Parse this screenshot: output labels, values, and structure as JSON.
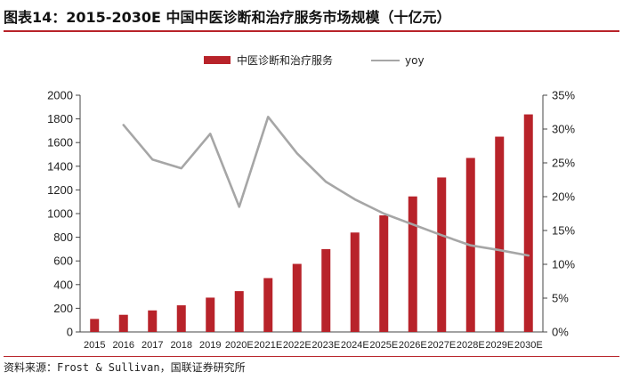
{
  "header": {
    "title": "图表14：2015-2030E 中国中医诊断和治疗服务市场规模（十亿元）"
  },
  "footer": {
    "source": "资料来源：Frost & Sullivan，国联证券研究所"
  },
  "colors": {
    "bar": "#b8232a",
    "line": "#a6a6a6",
    "accent": "#b8232a"
  },
  "chart_data": {
    "type": "bar",
    "title": "2015-2030E 中国中医诊断和治疗服务市场规模（十亿元）",
    "categories": [
      "2015",
      "2016",
      "2017",
      "2018",
      "2019",
      "2020E",
      "2021E",
      "2022E",
      "2023E",
      "2024E",
      "2025E",
      "2026E",
      "2027E",
      "2028E",
      "2029E",
      "2030E"
    ],
    "series": [
      {
        "name": "中医诊断和治疗服务",
        "axis": "left",
        "type": "bar",
        "values": [
          110,
          145,
          182,
          225,
          290,
          345,
          455,
          575,
          700,
          840,
          985,
          1145,
          1305,
          1470,
          1650,
          1838
        ]
      },
      {
        "name": "yoy",
        "axis": "right",
        "type": "line",
        "values": [
          null,
          30.6,
          25.5,
          24.2,
          29.3,
          18.5,
          31.8,
          26.4,
          22.2,
          19.6,
          17.5,
          15.9,
          14.3,
          12.8,
          12.1,
          11.3
        ]
      }
    ],
    "ylim": [
      0,
      2000
    ],
    "yticks": [
      "0",
      "200",
      "400",
      "600",
      "800",
      "1000",
      "1200",
      "1400",
      "1600",
      "1800",
      "2000"
    ],
    "y2lim": [
      0,
      35
    ],
    "y2ticks": [
      "0%",
      "5%",
      "10%",
      "15%",
      "20%",
      "25%",
      "30%",
      "35%"
    ],
    "legend_position": "top-center",
    "grid": false
  }
}
